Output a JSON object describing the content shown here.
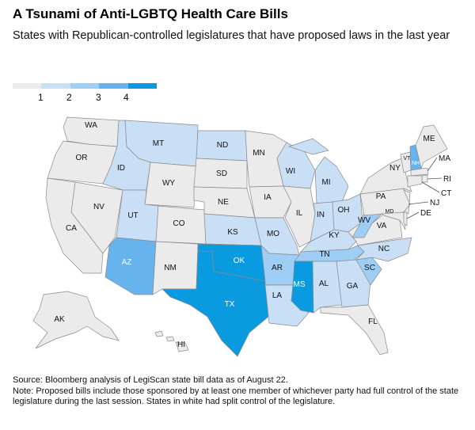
{
  "title": "A Tsunami of Anti-LGBTQ Health Care Bills",
  "subtitle": "States with Republican-controlled legislatures that have proposed laws in the last year",
  "legend": {
    "colors": [
      "#ebebeb",
      "#c8dff5",
      "#9ecdf5",
      "#66b3ee",
      "#0a9ae0"
    ],
    "labels": [
      "1",
      "2",
      "3",
      "4"
    ]
  },
  "states": [
    {
      "abbr": "WA",
      "bin": 0
    },
    {
      "abbr": "OR",
      "bin": 0
    },
    {
      "abbr": "CA",
      "bin": 0
    },
    {
      "abbr": "NV",
      "bin": 0
    },
    {
      "abbr": "ID",
      "bin": 1
    },
    {
      "abbr": "MT",
      "bin": 1
    },
    {
      "abbr": "WY",
      "bin": 0
    },
    {
      "abbr": "UT",
      "bin": 1
    },
    {
      "abbr": "CO",
      "bin": 0
    },
    {
      "abbr": "AZ",
      "bin": 3
    },
    {
      "abbr": "NM",
      "bin": 0
    },
    {
      "abbr": "ND",
      "bin": 1
    },
    {
      "abbr": "SD",
      "bin": 0
    },
    {
      "abbr": "NE",
      "bin": 0
    },
    {
      "abbr": "KS",
      "bin": 1
    },
    {
      "abbr": "OK",
      "bin": 4
    },
    {
      "abbr": "TX",
      "bin": 4
    },
    {
      "abbr": "MN",
      "bin": 0
    },
    {
      "abbr": "IA",
      "bin": 0
    },
    {
      "abbr": "MO",
      "bin": 1
    },
    {
      "abbr": "AR",
      "bin": 2
    },
    {
      "abbr": "LA",
      "bin": 1
    },
    {
      "abbr": "WI",
      "bin": 1
    },
    {
      "abbr": "IL",
      "bin": 0
    },
    {
      "abbr": "MI",
      "bin": 1
    },
    {
      "abbr": "IN",
      "bin": 1
    },
    {
      "abbr": "OH",
      "bin": 1
    },
    {
      "abbr": "KY",
      "bin": 1
    },
    {
      "abbr": "TN",
      "bin": 2
    },
    {
      "abbr": "MS",
      "bin": 4
    },
    {
      "abbr": "AL",
      "bin": 1
    },
    {
      "abbr": "GA",
      "bin": 1
    },
    {
      "abbr": "FL",
      "bin": 0
    },
    {
      "abbr": "SC",
      "bin": 2
    },
    {
      "abbr": "NC",
      "bin": 1
    },
    {
      "abbr": "VA",
      "bin": 0
    },
    {
      "abbr": "WV",
      "bin": 2
    },
    {
      "abbr": "PA",
      "bin": 0
    },
    {
      "abbr": "MD",
      "bin": 0
    },
    {
      "abbr": "NJ",
      "bin": 0
    },
    {
      "abbr": "NY",
      "bin": 0
    },
    {
      "abbr": "VT",
      "bin": 0
    },
    {
      "abbr": "NH",
      "bin": 3
    },
    {
      "abbr": "ME",
      "bin": 0
    },
    {
      "abbr": "MA",
      "bin": 0
    },
    {
      "abbr": "RI",
      "bin": 0
    },
    {
      "abbr": "CT",
      "bin": 0
    },
    {
      "abbr": "DE",
      "bin": 0
    },
    {
      "abbr": "AK",
      "bin": 0
    },
    {
      "abbr": "HI",
      "bin": 0
    }
  ],
  "footer": {
    "source": "Source: Bloomberg analysis of LegiScan state bill data as of August 22.",
    "note": "Note: Proposed bills include those sponsored by at least one member of whichever party had full control of the state legislature during the last session. States in white had split control of the legislature."
  }
}
